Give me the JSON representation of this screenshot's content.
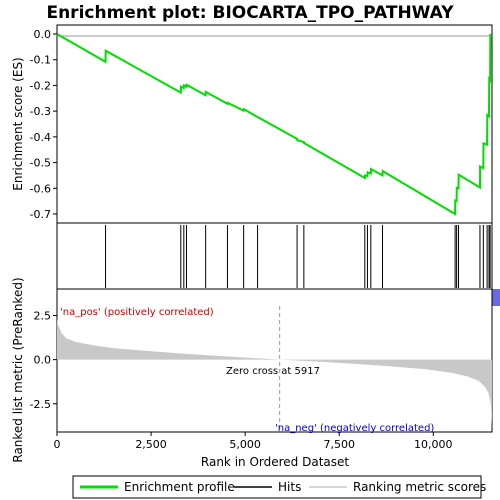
{
  "chart_data": {
    "type": "line",
    "title": "Enrichment plot: BIOCARTA_TPO_PATHWAY",
    "total_ranked": 11560,
    "top_panel": {
      "ylabel": "Enrichment score (ES)",
      "ylim": [
        -0.735,
        0.035
      ],
      "yticks": [
        0.0,
        -0.1,
        -0.2,
        -0.3,
        -0.4,
        -0.5,
        -0.6,
        -0.7
      ],
      "ytick_labels": [
        "0.0",
        "-0.1",
        "-0.2",
        "-0.3",
        "-0.4",
        "-0.5",
        "-0.6",
        "-0.7"
      ],
      "series": [
        {
          "name": "Enrichment profile",
          "color": "#00dd00",
          "x": [
            0,
            1290,
            1295,
            3290,
            3295,
            3370,
            3375,
            3440,
            3445,
            3950,
            3955,
            4530,
            4535,
            4960,
            4965,
            5330,
            5335,
            6380,
            6385,
            6560,
            6565,
            8180,
            8185,
            8250,
            8255,
            8340,
            8345,
            8650,
            8655,
            10580,
            10585,
            10620,
            10625,
            10670,
            10675,
            11240,
            11245,
            11330,
            11335,
            11430,
            11435,
            11480,
            11485,
            11510,
            11515
          ],
          "y": [
            0.0,
            -0.108,
            -0.065,
            -0.228,
            -0.205,
            -0.21,
            -0.2,
            -0.205,
            -0.197,
            -0.238,
            -0.225,
            -0.272,
            -0.268,
            -0.298,
            -0.292,
            -0.323,
            -0.323,
            -0.408,
            -0.413,
            -0.42,
            -0.424,
            -0.56,
            -0.55,
            -0.552,
            -0.538,
            -0.543,
            -0.525,
            -0.55,
            -0.533,
            -0.7,
            -0.648,
            -0.65,
            -0.598,
            -0.6,
            -0.547,
            -0.597,
            -0.515,
            -0.522,
            -0.425,
            -0.43,
            -0.315,
            -0.32,
            -0.175,
            -0.18,
            0.0
          ]
        }
      ]
    },
    "hits": [
      1290,
      3290,
      3370,
      3440,
      3950,
      4530,
      4960,
      5330,
      6380,
      6560,
      8180,
      8250,
      8340,
      8650,
      10580,
      10620,
      10670,
      11240,
      11330,
      11430,
      11480,
      11510
    ],
    "colorbar": {
      "colors": [
        "#e8303d",
        "#ec4f5a",
        "#ef6770",
        "#f3848b",
        "#f7a9ae",
        "#fbd0d3",
        "#fbe7f7",
        "#eeeafd",
        "#d6d6fa",
        "#b5b5f5",
        "#8f8fef",
        "#6969e8",
        "#3636db",
        "#0000cc"
      ],
      "fractions": [
        0.045,
        0.15,
        0.08,
        0.1,
        0.1,
        0.14,
        0.075,
        0.075,
        0.065,
        0.075,
        0.07,
        0.065,
        0.04,
        0.015
      ]
    },
    "bottom_panel": {
      "ylabel": "Ranked list metric (PreRanked)",
      "xlabel": "Rank in Ordered Dataset",
      "ylim": [
        -4.1,
        4.0
      ],
      "yticks": [
        2.5,
        0.0,
        -2.5
      ],
      "ytick_labels": [
        "2.5",
        "0.0",
        "-2.5"
      ],
      "xticks": [
        0,
        2500,
        5000,
        7500,
        10000
      ],
      "xtick_labels": [
        "0",
        "2,500",
        "5,000",
        "7,500",
        "10,000"
      ],
      "metric_x": [
        0,
        25,
        60,
        120,
        250,
        500,
        1000,
        1500,
        2500,
        3500,
        4500,
        5917,
        7000,
        8000,
        9000,
        9800,
        10500,
        10900,
        11200,
        11380,
        11470,
        11520,
        11545,
        11560
      ],
      "metric_y": [
        2.3,
        2.0,
        1.8,
        1.5,
        1.2,
        1.0,
        0.8,
        0.65,
        0.47,
        0.32,
        0.18,
        0.0,
        -0.12,
        -0.25,
        -0.4,
        -0.55,
        -0.75,
        -0.95,
        -1.2,
        -1.55,
        -1.9,
        -2.4,
        -3.0,
        -3.9
      ],
      "metric_color": "#c8c8c8",
      "zero_cross_rank": 5917,
      "zero_cross_label": "Zero cross at 5917",
      "pos_label": "'na_pos' (positively correlated)",
      "neg_label": "'na_neg' (negatively correlated)",
      "pos_color": "#cc0000",
      "neg_color": "#0000cc"
    },
    "legend": {
      "placement": "bottom",
      "items": [
        {
          "label": "Enrichment profile",
          "color": "#00dd00"
        },
        {
          "label": "Hits",
          "color": "#000000"
        },
        {
          "label": "Ranking metric scores",
          "color": "#c8c8c8"
        }
      ]
    }
  }
}
